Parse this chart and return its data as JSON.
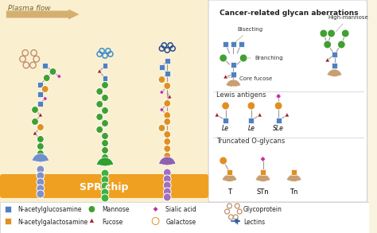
{
  "bg_color": "#faf3e0",
  "left_bg": "#faf0d0",
  "right_bg": "#ffffff",
  "spr_bar_color": "#f0a020",
  "spr_text": "SPR chip",
  "plasma_arrow_color": "#c8a060",
  "plasma_text": "Plasma flow",
  "title_right": "Cancer-related glycan aberrations",
  "colors": {
    "glcnac": "#5080c0",
    "mannose": "#40a030",
    "fucose": "#a02020",
    "galactose": "#e09020",
    "sialic": "#c030a0",
    "glycoprotein": "#c09070",
    "lectin1": "#7090c8",
    "lectin2": "#30a030",
    "lectin3": "#9060b0",
    "stem1": "#8090c8",
    "stem2": "#40b040",
    "stem3": "#a070c0",
    "tan": "#c8a070"
  }
}
